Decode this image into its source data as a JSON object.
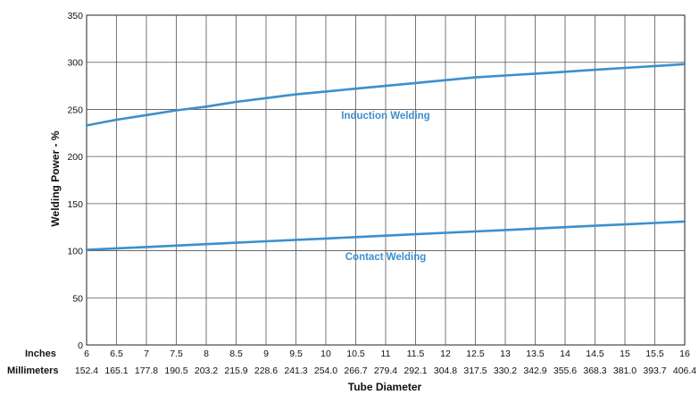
{
  "chart_data": {
    "type": "line",
    "xlabel": "Tube Diameter",
    "ylabel": "Welding Power - %",
    "row_labels": {
      "inches": "Inches",
      "millimeters": "Millimeters"
    },
    "x_inches": [
      "6",
      "6.5",
      "7",
      "7.5",
      "8",
      "8.5",
      "9",
      "9.5",
      "10",
      "10.5",
      "11",
      "11.5",
      "12",
      "12.5",
      "13",
      "13.5",
      "14",
      "14.5",
      "15",
      "15.5",
      "16"
    ],
    "x_mm": [
      "152.4",
      "165.1",
      "177.8",
      "190.5",
      "203.2",
      "215.9",
      "228.6",
      "241.3",
      "254.0",
      "266.7",
      "279.4",
      "292.1",
      "304.8",
      "317.5",
      "330.2",
      "342.9",
      "355.6",
      "368.3",
      "381.0",
      "393.7",
      "406.4"
    ],
    "y_ticks": [
      0,
      50,
      100,
      150,
      200,
      250,
      300,
      350
    ],
    "ylim": [
      0,
      350
    ],
    "xlim": [
      6,
      16
    ],
    "grid": true,
    "series_color": "#3d8fcc",
    "series": [
      {
        "name": "Induction Welding",
        "x": [
          6,
          6.5,
          7,
          7.5,
          8,
          8.5,
          9,
          9.5,
          10,
          10.5,
          11,
          11.5,
          12,
          12.5,
          13,
          13.5,
          14,
          14.5,
          15,
          15.5,
          16
        ],
        "y": [
          233,
          239,
          244,
          249,
          253,
          258,
          262,
          266,
          269,
          272,
          275,
          278,
          281,
          284,
          286,
          288,
          290,
          292,
          294,
          296,
          298
        ]
      },
      {
        "name": "Contact Welding",
        "x": [
          6,
          6.5,
          7,
          7.5,
          8,
          8.5,
          9,
          9.5,
          10,
          10.5,
          11,
          11.5,
          12,
          12.5,
          13,
          13.5,
          14,
          14.5,
          15,
          15.5,
          16
        ],
        "y": [
          101,
          102.5,
          104,
          105.5,
          107,
          108.5,
          110,
          111.5,
          113,
          114.5,
          116,
          117.5,
          119,
          120.5,
          122,
          123.5,
          125,
          126.5,
          128,
          129.5,
          131
        ]
      }
    ]
  }
}
